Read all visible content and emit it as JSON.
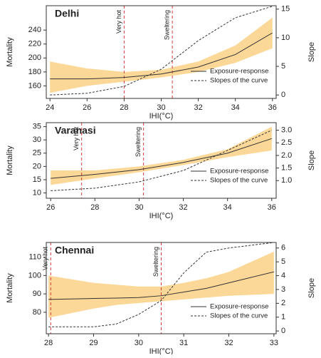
{
  "chart_data": [
    {
      "type": "line",
      "title": "Delhi",
      "xlabel": "IHI(°C)",
      "ylabel": "Mortality",
      "y2label": "Slope",
      "legend": "lower right",
      "x": [
        24,
        26,
        28,
        30,
        32,
        34,
        36
      ],
      "band": {
        "color": "#fcd898",
        "lower": [
          150,
          160,
          166,
          172,
          180,
          193,
          214
        ],
        "upper": [
          195,
          185,
          180,
          183,
          195,
          218,
          258
        ]
      },
      "series": [
        {
          "name": "Exposure-response",
          "color": "#333333",
          "values": [
            170,
            170,
            172,
            177,
            187,
            205,
            236
          ]
        },
        {
          "name": "Slopes of the curve",
          "color": "#333333",
          "dashed": true,
          "axis": "y2",
          "values": [
            0,
            0.3,
            1.5,
            4.5,
            9.5,
            13.5,
            15.5
          ]
        }
      ],
      "annotations": [
        {
          "text": "Very hot",
          "x": 28
        },
        {
          "text": "Sweltering",
          "x": 30.6
        }
      ],
      "xlim": [
        23.8,
        36.2
      ],
      "xticks": [
        24,
        26,
        28,
        30,
        32,
        34,
        36
      ],
      "ylim": [
        142,
        275
      ],
      "yticks": [
        160,
        180,
        200,
        220,
        240
      ],
      "y2lim": [
        -0.6,
        15.6
      ],
      "y2ticks": [
        0,
        5,
        10,
        15
      ]
    },
    {
      "type": "line",
      "title": "Varanasi",
      "xlabel": "IHI(°C)",
      "ylabel": "Mortality",
      "y2label": "Slope",
      "legend": "lower right",
      "x": [
        26,
        28,
        30,
        32,
        34,
        36
      ],
      "band": {
        "color": "#fcd898",
        "lower": [
          13,
          15.5,
          17.8,
          20.5,
          23.5,
          26
        ],
        "upper": [
          18.5,
          18.5,
          20,
          22.5,
          26.5,
          35
        ]
      },
      "series": [
        {
          "name": "Exposure-response",
          "color": "#333333",
          "values": [
            15.5,
            17,
            18.8,
            21.5,
            25,
            30.5
          ]
        },
        {
          "name": "Slopes of the curve",
          "color": "#333333",
          "dashed": true,
          "axis": "y2",
          "values": [
            0.6,
            0.7,
            0.95,
            1.4,
            2.2,
            3.0
          ]
        }
      ],
      "annotations": [
        {
          "text": "Very hot",
          "x": 27.4
        },
        {
          "text": "Sweltering",
          "x": 30.2
        }
      ],
      "xlim": [
        25.8,
        36.2
      ],
      "xticks": [
        26,
        28,
        30,
        32,
        34,
        36
      ],
      "ylim": [
        8,
        36.5
      ],
      "yticks": [
        10,
        15,
        20,
        25,
        30,
        35
      ],
      "y2lim": [
        0.3,
        3.3
      ],
      "y2ticks": [
        {
          "value": 1,
          "label": "1.0"
        },
        1.5,
        {
          "value": 2,
          "label": "2.0"
        },
        2.5,
        {
          "value": 3,
          "label": "3.0"
        }
      ]
    },
    {
      "type": "line",
      "title": "Chennai",
      "xlabel": "IHI(°C)",
      "ylabel": "Mortality",
      "y2label": "Slope",
      "legend": "lower right",
      "x": [
        28,
        29,
        29.5,
        30,
        30.5,
        31,
        31.5,
        32,
        33
      ],
      "band": {
        "color": "#fcd898",
        "lower": [
          77,
          82,
          84,
          85,
          86,
          87,
          88,
          89,
          90
        ],
        "upper": [
          100,
          96,
          95,
          94,
          94,
          96,
          98.5,
          102,
          113
        ]
      },
      "series": [
        {
          "name": "Exposure-response",
          "color": "#333333",
          "values": [
            87,
            87.5,
            87.7,
            88,
            89,
            91,
            93,
            96,
            102
          ]
        },
        {
          "name": "Slopes of the curve",
          "color": "#333333",
          "dashed": true,
          "axis": "y2",
          "values": [
            0.3,
            0.3,
            0.5,
            1.2,
            2.2,
            4.2,
            5.7,
            6.0,
            6.4
          ]
        }
      ],
      "annotations": [
        {
          "text": "Very hot",
          "x": 28.05
        },
        {
          "text": "Sweltering",
          "x": 30.5
        }
      ],
      "xlim": [
        27.95,
        33.05
      ],
      "xticks": [
        28,
        29,
        30,
        31,
        32,
        33
      ],
      "ylim": [
        68.3,
        118
      ],
      "yticks": [
        80,
        90,
        100,
        110
      ],
      "y2lim": [
        -0.2,
        6.4
      ],
      "y2ticks": [
        0,
        1,
        2,
        3,
        4,
        5,
        6
      ]
    }
  ]
}
